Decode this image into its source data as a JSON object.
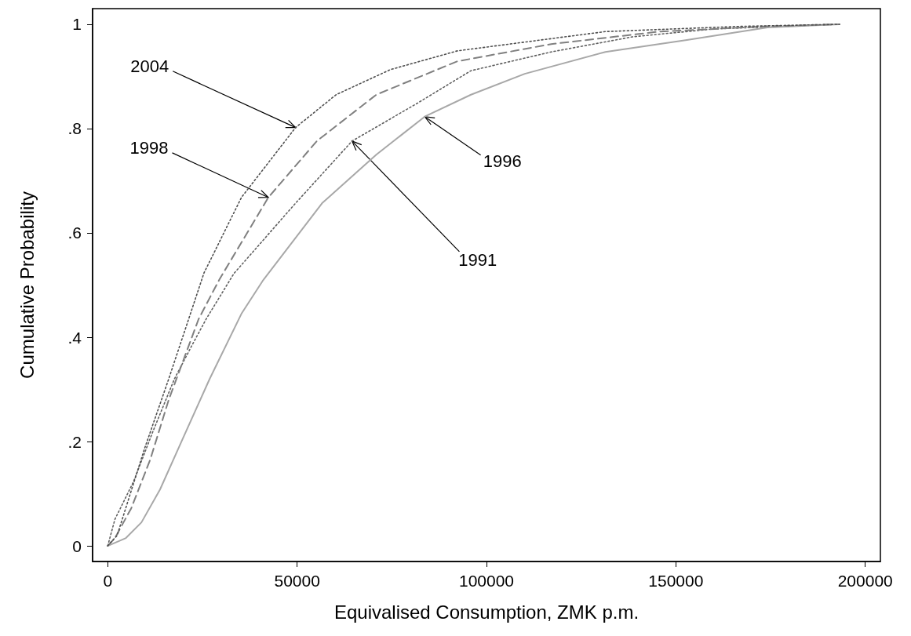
{
  "chart_data": {
    "type": "line",
    "xlabel": "Equivalised Consumption, ZMK p.m.",
    "ylabel": "Cumulative Probability",
    "xlim": [
      -4000,
      204000
    ],
    "xticks": [
      0,
      50000,
      100000,
      150000,
      200000
    ],
    "ylim": [
      -0.03,
      1.03
    ],
    "yticks": [
      0,
      {
        "value": 0.2,
        "label": ".2"
      },
      {
        "value": 0.4,
        "label": ".4"
      },
      {
        "value": 0.6,
        "label": ".6"
      },
      {
        "value": 0.8,
        "label": ".8"
      },
      1
    ],
    "annotations": [
      {
        "text": "2004",
        "x": 49600,
        "y": 0.802
      },
      {
        "text": "1998",
        "x": 42400,
        "y": 0.668
      },
      {
        "text": "1996",
        "x": 83700,
        "y": 0.823
      },
      {
        "text": "1991",
        "x": 64500,
        "y": 0.776
      }
    ],
    "grid": false,
    "marker": "none",
    "series": [
      {
        "color": "#505050",
        "line_style": "dotted",
        "x": [
          0,
          2480,
          9700,
          16100,
          25400,
          35300,
          49600,
          60300,
          74600,
          92300,
          131400,
          167100,
          193200
        ],
        "values": [
          0,
          0.02,
          0.186,
          0.32,
          0.523,
          0.668,
          0.802,
          0.865,
          0.913,
          0.949,
          0.986,
          0.996,
          1
        ]
      },
      {
        "color": "#808080",
        "line_style": "dashed",
        "x": [
          0,
          1900,
          6200,
          11200,
          16100,
          24000,
          29500,
          42400,
          55200,
          70900,
          92300,
          117100,
          145700,
          174200,
          193200
        ],
        "values": [
          0,
          0.015,
          0.072,
          0.165,
          0.28,
          0.435,
          0.511,
          0.668,
          0.776,
          0.865,
          0.929,
          0.962,
          0.986,
          0.996,
          1
        ]
      },
      {
        "color": "#a8a8a8",
        "line_style": "solid",
        "x": [
          0,
          4800,
          8900,
          13800,
          19600,
          26900,
          35300,
          40900,
          56600,
          70900,
          83700,
          95900,
          110100,
          131400,
          152900,
          174200,
          193200
        ],
        "values": [
          0,
          0.015,
          0.045,
          0.108,
          0.202,
          0.32,
          0.445,
          0.508,
          0.657,
          0.75,
          0.823,
          0.865,
          0.905,
          0.947,
          0.97,
          0.994,
          1
        ]
      },
      {
        "color": "#606060",
        "line_style": "dotted",
        "x": [
          0,
          1900,
          6800,
          11800,
          17600,
          22500,
          26000,
          33300,
          49600,
          64500,
          81600,
          95900,
          117100,
          138600,
          159900,
          193200
        ],
        "values": [
          0,
          0.051,
          0.123,
          0.217,
          0.32,
          0.388,
          0.435,
          0.522,
          0.657,
          0.776,
          0.848,
          0.911,
          0.947,
          0.976,
          0.991,
          1
        ]
      }
    ]
  }
}
